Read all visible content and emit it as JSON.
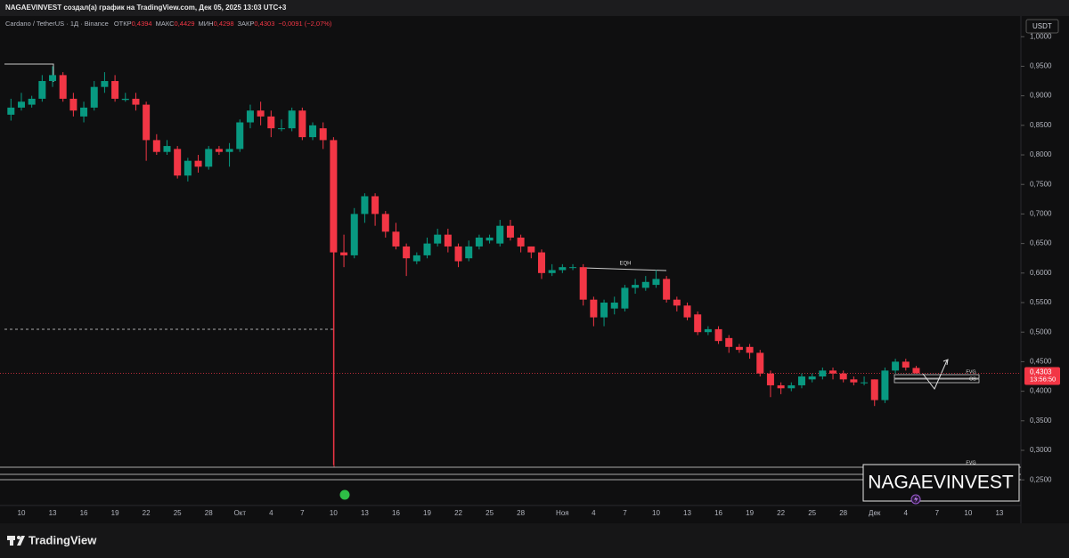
{
  "top_bar": {
    "text": "NAGAEVINVEST создал(а) график на TradingView.com, Дек 05, 2025 13:03 UTC+3"
  },
  "footer": {
    "brand": "TradingView"
  },
  "chart_data": {
    "type": "candlestick",
    "symbol": "Cardano / TetherUS · 1Д · Binance",
    "ohlc_legend": [
      {
        "name": "ОТКР",
        "value": "0,4394"
      },
      {
        "name": "МАКС",
        "value": "0,4429"
      },
      {
        "name": "МИН",
        "value": "0,4298"
      },
      {
        "name": "ЗАКР",
        "value": "0,4303"
      }
    ],
    "change": "−0,0091 (−2,07%)",
    "currency": "USDT",
    "price_tag": {
      "price": "0,4303",
      "countdown": "13:56:50"
    },
    "annotations": [
      "EQH",
      "FVG",
      "OB",
      "FVG",
      "FVG"
    ],
    "watermark": "NAGAEVINVEST",
    "up_color": "#089981",
    "down_color": "#f23645",
    "categories": [
      null,
      "10",
      null,
      null,
      "13",
      null,
      null,
      "16",
      null,
      null,
      "19",
      null,
      null,
      "22",
      null,
      null,
      "25",
      null,
      null,
      "28",
      null,
      null,
      "Окт",
      null,
      null,
      "4",
      null,
      null,
      "7",
      null,
      null,
      "10",
      null,
      null,
      "13",
      null,
      null,
      "16",
      null,
      null,
      "19",
      null,
      null,
      "22",
      null,
      null,
      "25",
      null,
      null,
      "28",
      null,
      null,
      null,
      "Ноя",
      null,
      null,
      "4",
      null,
      null,
      "7",
      null,
      null,
      "10",
      null,
      null,
      "13",
      null,
      null,
      "16",
      null,
      null,
      "19",
      null,
      null,
      "22",
      null,
      null,
      "25",
      null,
      null,
      "28",
      null,
      null,
      "Дек",
      null,
      null,
      "4",
      null,
      null,
      "7",
      null,
      null,
      "10",
      null,
      null,
      "13"
    ],
    "open": [
      0.868,
      0.88,
      0.885,
      0.895,
      0.925,
      0.935,
      0.895,
      0.865,
      0.88,
      0.915,
      0.925,
      0.893,
      0.895,
      0.885,
      0.825,
      0.805,
      0.81,
      0.765,
      0.79,
      0.78,
      0.81,
      0.805,
      0.81,
      0.855,
      0.875,
      0.865,
      0.845,
      0.845,
      0.875,
      0.83,
      0.845,
      0.825,
      0.635,
      0.63,
      0.7,
      0.73,
      0.7,
      0.67,
      0.645,
      0.62,
      0.63,
      0.65,
      0.665,
      0.645,
      0.625,
      0.645,
      0.655,
      0.65,
      0.68,
      0.66,
      0.645,
      0.635,
      0.6,
      0.605,
      0.61,
      0.61,
      0.555,
      0.525,
      0.54,
      0.54,
      0.575,
      0.575,
      0.58,
      0.59,
      0.555,
      0.545,
      0.53,
      0.5,
      0.505,
      0.49,
      0.475,
      0.475,
      0.465,
      0.43,
      0.41,
      0.405,
      0.41,
      0.42,
      0.425,
      0.435,
      0.43,
      0.42,
      0.415,
      0.42,
      0.385,
      0.435,
      0.45,
      0.4394,
      null,
      null,
      null,
      null,
      null,
      null,
      null,
      null
    ],
    "high": [
      0.895,
      0.905,
      0.9,
      0.935,
      0.95,
      0.94,
      0.905,
      0.89,
      0.925,
      0.94,
      0.935,
      0.905,
      0.905,
      0.89,
      0.835,
      0.825,
      0.815,
      0.795,
      0.8,
      0.815,
      0.815,
      0.82,
      0.86,
      0.885,
      0.89,
      0.875,
      0.86,
      0.88,
      0.88,
      0.855,
      0.855,
      0.83,
      0.665,
      0.71,
      0.735,
      0.735,
      0.705,
      0.685,
      0.65,
      0.635,
      0.66,
      0.675,
      0.675,
      0.65,
      0.655,
      0.665,
      0.665,
      0.69,
      0.69,
      0.665,
      0.645,
      0.64,
      0.615,
      0.615,
      0.615,
      0.615,
      0.56,
      0.555,
      0.56,
      0.58,
      0.59,
      0.595,
      0.605,
      0.595,
      0.56,
      0.55,
      0.535,
      0.51,
      0.51,
      0.495,
      0.48,
      0.48,
      0.47,
      0.435,
      0.415,
      0.415,
      0.43,
      0.43,
      0.44,
      0.44,
      0.435,
      0.425,
      0.425,
      0.42,
      0.44,
      0.455,
      0.455,
      0.4429,
      null,
      null,
      null,
      null,
      null,
      null,
      null,
      null
    ],
    "low": [
      0.858,
      0.875,
      0.88,
      0.89,
      0.915,
      0.89,
      0.865,
      0.855,
      0.875,
      0.905,
      0.89,
      0.89,
      0.875,
      0.79,
      0.8,
      0.8,
      0.76,
      0.755,
      0.77,
      0.775,
      0.8,
      0.78,
      0.805,
      0.845,
      0.85,
      0.83,
      0.84,
      0.84,
      0.825,
      0.825,
      0.81,
      0.275,
      0.61,
      0.625,
      0.685,
      0.68,
      0.66,
      0.64,
      0.595,
      0.615,
      0.625,
      0.645,
      0.635,
      0.61,
      0.62,
      0.64,
      0.65,
      0.645,
      0.655,
      0.635,
      0.625,
      0.59,
      0.595,
      0.6,
      0.605,
      0.545,
      0.51,
      0.51,
      0.53,
      0.535,
      0.565,
      0.57,
      0.575,
      0.55,
      0.535,
      0.52,
      0.495,
      0.495,
      0.48,
      0.465,
      0.465,
      0.455,
      0.425,
      0.39,
      0.395,
      0.4,
      0.405,
      0.415,
      0.42,
      0.42,
      0.415,
      0.41,
      0.41,
      0.375,
      0.38,
      0.43,
      0.435,
      0.4298,
      null,
      null,
      null,
      null,
      null,
      null,
      null,
      null
    ],
    "close": [
      0.88,
      0.89,
      0.895,
      0.925,
      0.935,
      0.895,
      0.875,
      0.88,
      0.915,
      0.925,
      0.895,
      0.895,
      0.885,
      0.825,
      0.805,
      0.815,
      0.765,
      0.79,
      0.78,
      0.81,
      0.805,
      0.81,
      0.855,
      0.875,
      0.865,
      0.845,
      0.845,
      0.875,
      0.83,
      0.85,
      0.825,
      0.635,
      0.63,
      0.7,
      0.73,
      0.7,
      0.67,
      0.645,
      0.625,
      0.63,
      0.65,
      0.665,
      0.645,
      0.62,
      0.645,
      0.66,
      0.66,
      0.68,
      0.66,
      0.645,
      0.635,
      0.6,
      0.605,
      0.61,
      0.61,
      0.555,
      0.525,
      0.55,
      0.55,
      0.575,
      0.58,
      0.585,
      0.59,
      0.555,
      0.545,
      0.525,
      0.5,
      0.505,
      0.485,
      0.475,
      0.47,
      0.465,
      0.43,
      0.41,
      0.405,
      0.41,
      0.425,
      0.425,
      0.435,
      0.43,
      0.42,
      0.415,
      0.415,
      0.385,
      0.435,
      0.45,
      0.44,
      0.4303,
      null,
      null,
      null,
      null,
      null,
      null,
      null,
      null
    ],
    "ylim": [
      0.181,
      1.032
    ],
    "yticks": [
      {
        "value": 0.25,
        "label": "0,2500"
      },
      {
        "value": 0.3,
        "label": "0,3000"
      },
      {
        "value": 0.35,
        "label": "0,3500"
      },
      {
        "value": 0.4,
        "label": "0,4000"
      },
      {
        "value": 0.45,
        "label": "0,4500"
      },
      {
        "value": 0.5,
        "label": "0,5000"
      },
      {
        "value": 0.55,
        "label": "0,5500"
      },
      {
        "value": 0.6,
        "label": "0,6000"
      },
      {
        "value": 0.65,
        "label": "0,6500"
      },
      {
        "value": 0.7,
        "label": "0,7000"
      },
      {
        "value": 0.75,
        "label": "0,7500"
      },
      {
        "value": 0.8,
        "label": "0,8000"
      },
      {
        "value": 0.85,
        "label": "0,8500"
      },
      {
        "value": 0.9,
        "label": "0,9000"
      },
      {
        "value": 0.95,
        "label": "0,9500"
      },
      {
        "value": 1,
        "label": "1,0000"
      }
    ]
  }
}
